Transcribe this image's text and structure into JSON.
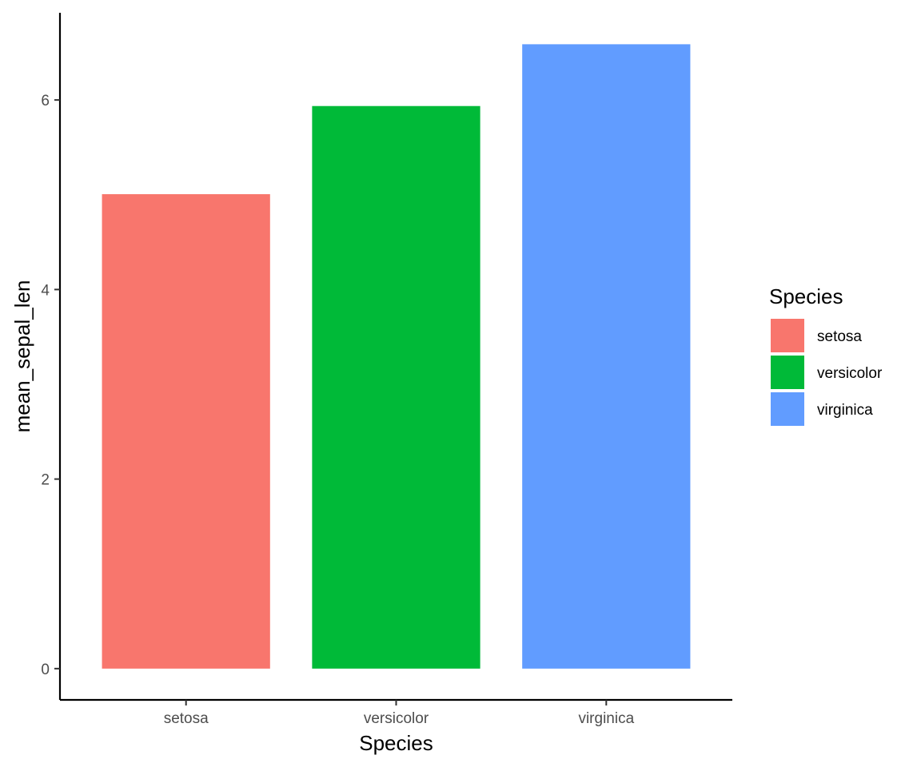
{
  "chart_data": {
    "type": "bar",
    "title": "",
    "xlabel": "Species",
    "ylabel": "mean_sepal_len",
    "categories": [
      "setosa",
      "versicolor",
      "virginica"
    ],
    "values": [
      5.006,
      5.936,
      6.588
    ],
    "colors": [
      "#F8766D",
      "#00BA38",
      "#619CFF"
    ],
    "ylim": [
      -0.33,
      6.92
    ],
    "y_ticks": [
      0,
      2,
      4,
      6
    ],
    "grid": false,
    "legend": {
      "title": "Species",
      "position": "right",
      "items": [
        "setosa",
        "versicolor",
        "virginica"
      ]
    }
  }
}
